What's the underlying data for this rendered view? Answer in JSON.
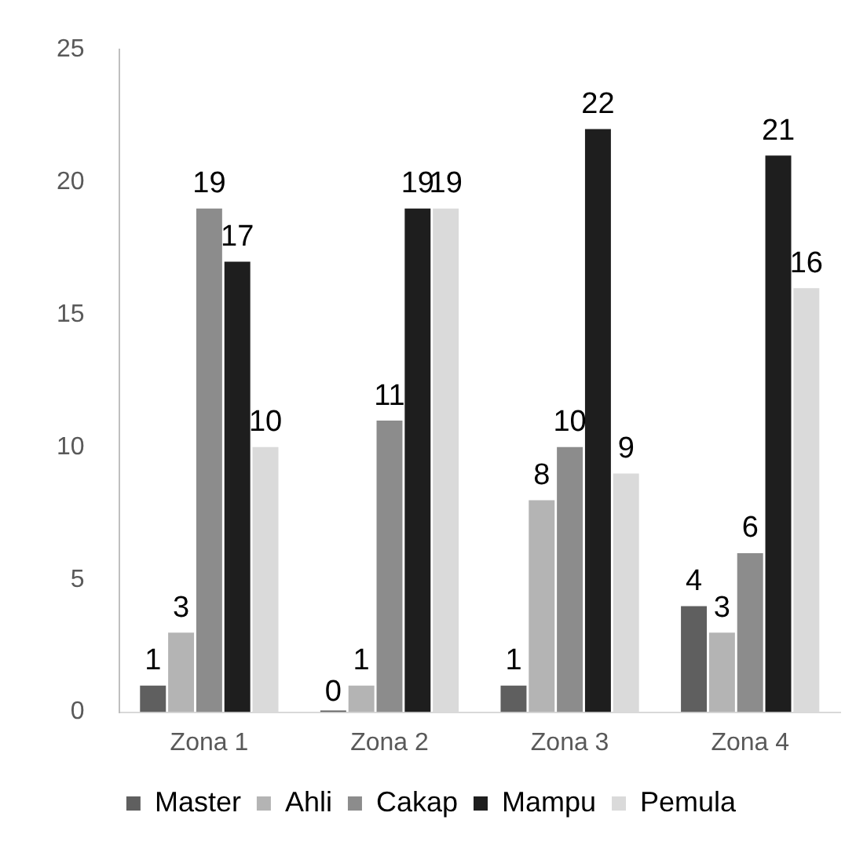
{
  "chart_data": {
    "type": "bar",
    "categories": [
      "Zona 1",
      "Zona 2",
      "Zona 3",
      "Zona 4"
    ],
    "series": [
      {
        "name": "Master",
        "color": "#5f5f5f",
        "values": [
          1,
          0,
          1,
          4
        ]
      },
      {
        "name": "Ahli",
        "color": "#b4b4b4",
        "values": [
          3,
          1,
          8,
          3
        ]
      },
      {
        "name": "Cakap",
        "color": "#8c8c8c",
        "values": [
          19,
          11,
          10,
          6
        ]
      },
      {
        "name": "Mampu",
        "color": "#1e1e1e",
        "values": [
          17,
          19,
          22,
          21
        ]
      },
      {
        "name": "Pemula",
        "color": "#dadada",
        "values": [
          10,
          19,
          9,
          16
        ]
      }
    ],
    "ylim": [
      0,
      25
    ],
    "yticks": [
      0,
      5,
      10,
      15,
      20,
      25
    ],
    "grid": false,
    "legend": "bottom",
    "data_labels": true
  }
}
